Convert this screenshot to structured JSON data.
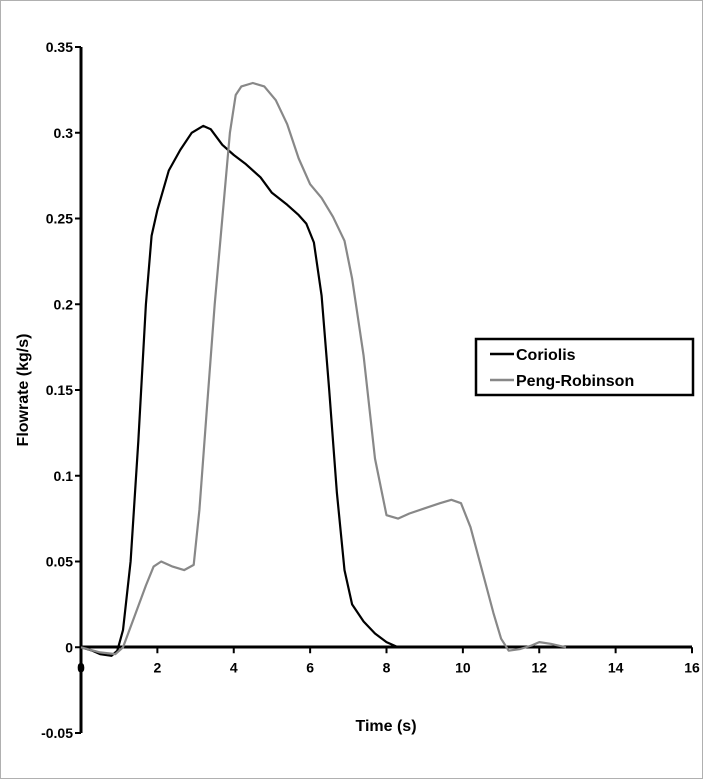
{
  "chart_data": {
    "type": "line",
    "title": "",
    "xlabel": "Time (s)",
    "ylabel": "Flowrate (kg/s)",
    "xlim": [
      0,
      16
    ],
    "ylim": [
      -0.05,
      0.35
    ],
    "x_ticks": [
      "0",
      "2",
      "4",
      "6",
      "8",
      "10",
      "12",
      "14",
      "16"
    ],
    "y_ticks": [
      "-0.05",
      "0",
      "0.05",
      "0.1",
      "0.15",
      "0.2",
      "0.25",
      "0.3",
      "0.35"
    ],
    "grid": false,
    "legend_position": "middle-right",
    "series": [
      {
        "name": "Coriolis",
        "color": "#000000",
        "points": [
          [
            0,
            0
          ],
          [
            0.3,
            -0.002
          ],
          [
            0.5,
            -0.004
          ],
          [
            0.8,
            -0.005
          ],
          [
            0.95,
            -0.002
          ],
          [
            1.1,
            0.01
          ],
          [
            1.3,
            0.05
          ],
          [
            1.5,
            0.12
          ],
          [
            1.7,
            0.2
          ],
          [
            1.85,
            0.24
          ],
          [
            2.0,
            0.255
          ],
          [
            2.3,
            0.278
          ],
          [
            2.6,
            0.29
          ],
          [
            2.9,
            0.3
          ],
          [
            3.2,
            0.304
          ],
          [
            3.4,
            0.302
          ],
          [
            3.7,
            0.293
          ],
          [
            4.0,
            0.287
          ],
          [
            4.3,
            0.282
          ],
          [
            4.7,
            0.274
          ],
          [
            5.0,
            0.265
          ],
          [
            5.4,
            0.258
          ],
          [
            5.7,
            0.252
          ],
          [
            5.9,
            0.247
          ],
          [
            6.1,
            0.236
          ],
          [
            6.3,
            0.205
          ],
          [
            6.5,
            0.15
          ],
          [
            6.7,
            0.09
          ],
          [
            6.9,
            0.045
          ],
          [
            7.1,
            0.025
          ],
          [
            7.4,
            0.015
          ],
          [
            7.7,
            0.008
          ],
          [
            8.0,
            0.003
          ],
          [
            8.3,
            0.0
          ]
        ]
      },
      {
        "name": "Peng-Robinson",
        "color": "#888888",
        "points": [
          [
            0,
            0
          ],
          [
            0.5,
            -0.003
          ],
          [
            0.9,
            -0.004
          ],
          [
            1.1,
            0.0
          ],
          [
            1.4,
            0.018
          ],
          [
            1.7,
            0.036
          ],
          [
            1.9,
            0.047
          ],
          [
            2.1,
            0.05
          ],
          [
            2.4,
            0.047
          ],
          [
            2.7,
            0.045
          ],
          [
            2.95,
            0.048
          ],
          [
            3.1,
            0.08
          ],
          [
            3.3,
            0.14
          ],
          [
            3.5,
            0.2
          ],
          [
            3.7,
            0.25
          ],
          [
            3.9,
            0.3
          ],
          [
            4.05,
            0.322
          ],
          [
            4.2,
            0.327
          ],
          [
            4.5,
            0.329
          ],
          [
            4.8,
            0.327
          ],
          [
            5.1,
            0.319
          ],
          [
            5.4,
            0.305
          ],
          [
            5.7,
            0.285
          ],
          [
            6.0,
            0.27
          ],
          [
            6.3,
            0.262
          ],
          [
            6.6,
            0.251
          ],
          [
            6.9,
            0.237
          ],
          [
            7.1,
            0.215
          ],
          [
            7.4,
            0.17
          ],
          [
            7.7,
            0.11
          ],
          [
            8.0,
            0.077
          ],
          [
            8.3,
            0.075
          ],
          [
            8.6,
            0.078
          ],
          [
            9.0,
            0.081
          ],
          [
            9.4,
            0.084
          ],
          [
            9.7,
            0.086
          ],
          [
            9.95,
            0.084
          ],
          [
            10.2,
            0.07
          ],
          [
            10.5,
            0.045
          ],
          [
            10.8,
            0.02
          ],
          [
            11.0,
            0.005
          ],
          [
            11.2,
            -0.002
          ],
          [
            11.5,
            -0.001
          ],
          [
            11.8,
            0.001
          ],
          [
            12.0,
            0.003
          ],
          [
            12.3,
            0.002
          ],
          [
            12.7,
            0.0
          ]
        ]
      }
    ]
  }
}
